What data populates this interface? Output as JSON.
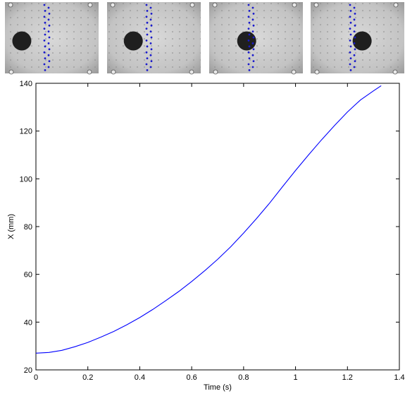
{
  "panels": {
    "frames": [
      {
        "ball_x_frac": 0.18
      },
      {
        "ball_x_frac": 0.28
      },
      {
        "ball_x_frac": 0.4
      },
      {
        "ball_x_frac": 0.55
      }
    ],
    "marker_color": "#1a1acc"
  },
  "chart_data": {
    "type": "line",
    "title": "",
    "xlabel": "Time (s)",
    "ylabel": "X (mm)",
    "xlim": [
      0,
      1.4
    ],
    "ylim": [
      20,
      140
    ],
    "xticks": [
      0,
      0.2,
      0.4,
      0.6,
      0.8,
      1,
      1.2,
      1.4
    ],
    "yticks": [
      20,
      40,
      60,
      80,
      100,
      120,
      140
    ],
    "grid": false,
    "series": [
      {
        "color": "#0000ff",
        "x": [
          0,
          0.05,
          0.1,
          0.15,
          0.2,
          0.25,
          0.3,
          0.35,
          0.4,
          0.45,
          0.5,
          0.55,
          0.6,
          0.65,
          0.7,
          0.75,
          0.8,
          0.85,
          0.9,
          0.95,
          1.0,
          1.05,
          1.1,
          1.15,
          1.2,
          1.25,
          1.3,
          1.33
        ],
        "y": [
          27,
          27.3,
          28.2,
          29.7,
          31.5,
          33.7,
          36.1,
          38.9,
          41.9,
          45.3,
          49.0,
          52.8,
          57.0,
          61.5,
          66.3,
          71.5,
          77.3,
          83.4,
          89.8,
          96.7,
          103.5,
          110.0,
          116.3,
          122.3,
          128.0,
          133.0,
          136.8,
          139.0
        ]
      }
    ]
  }
}
